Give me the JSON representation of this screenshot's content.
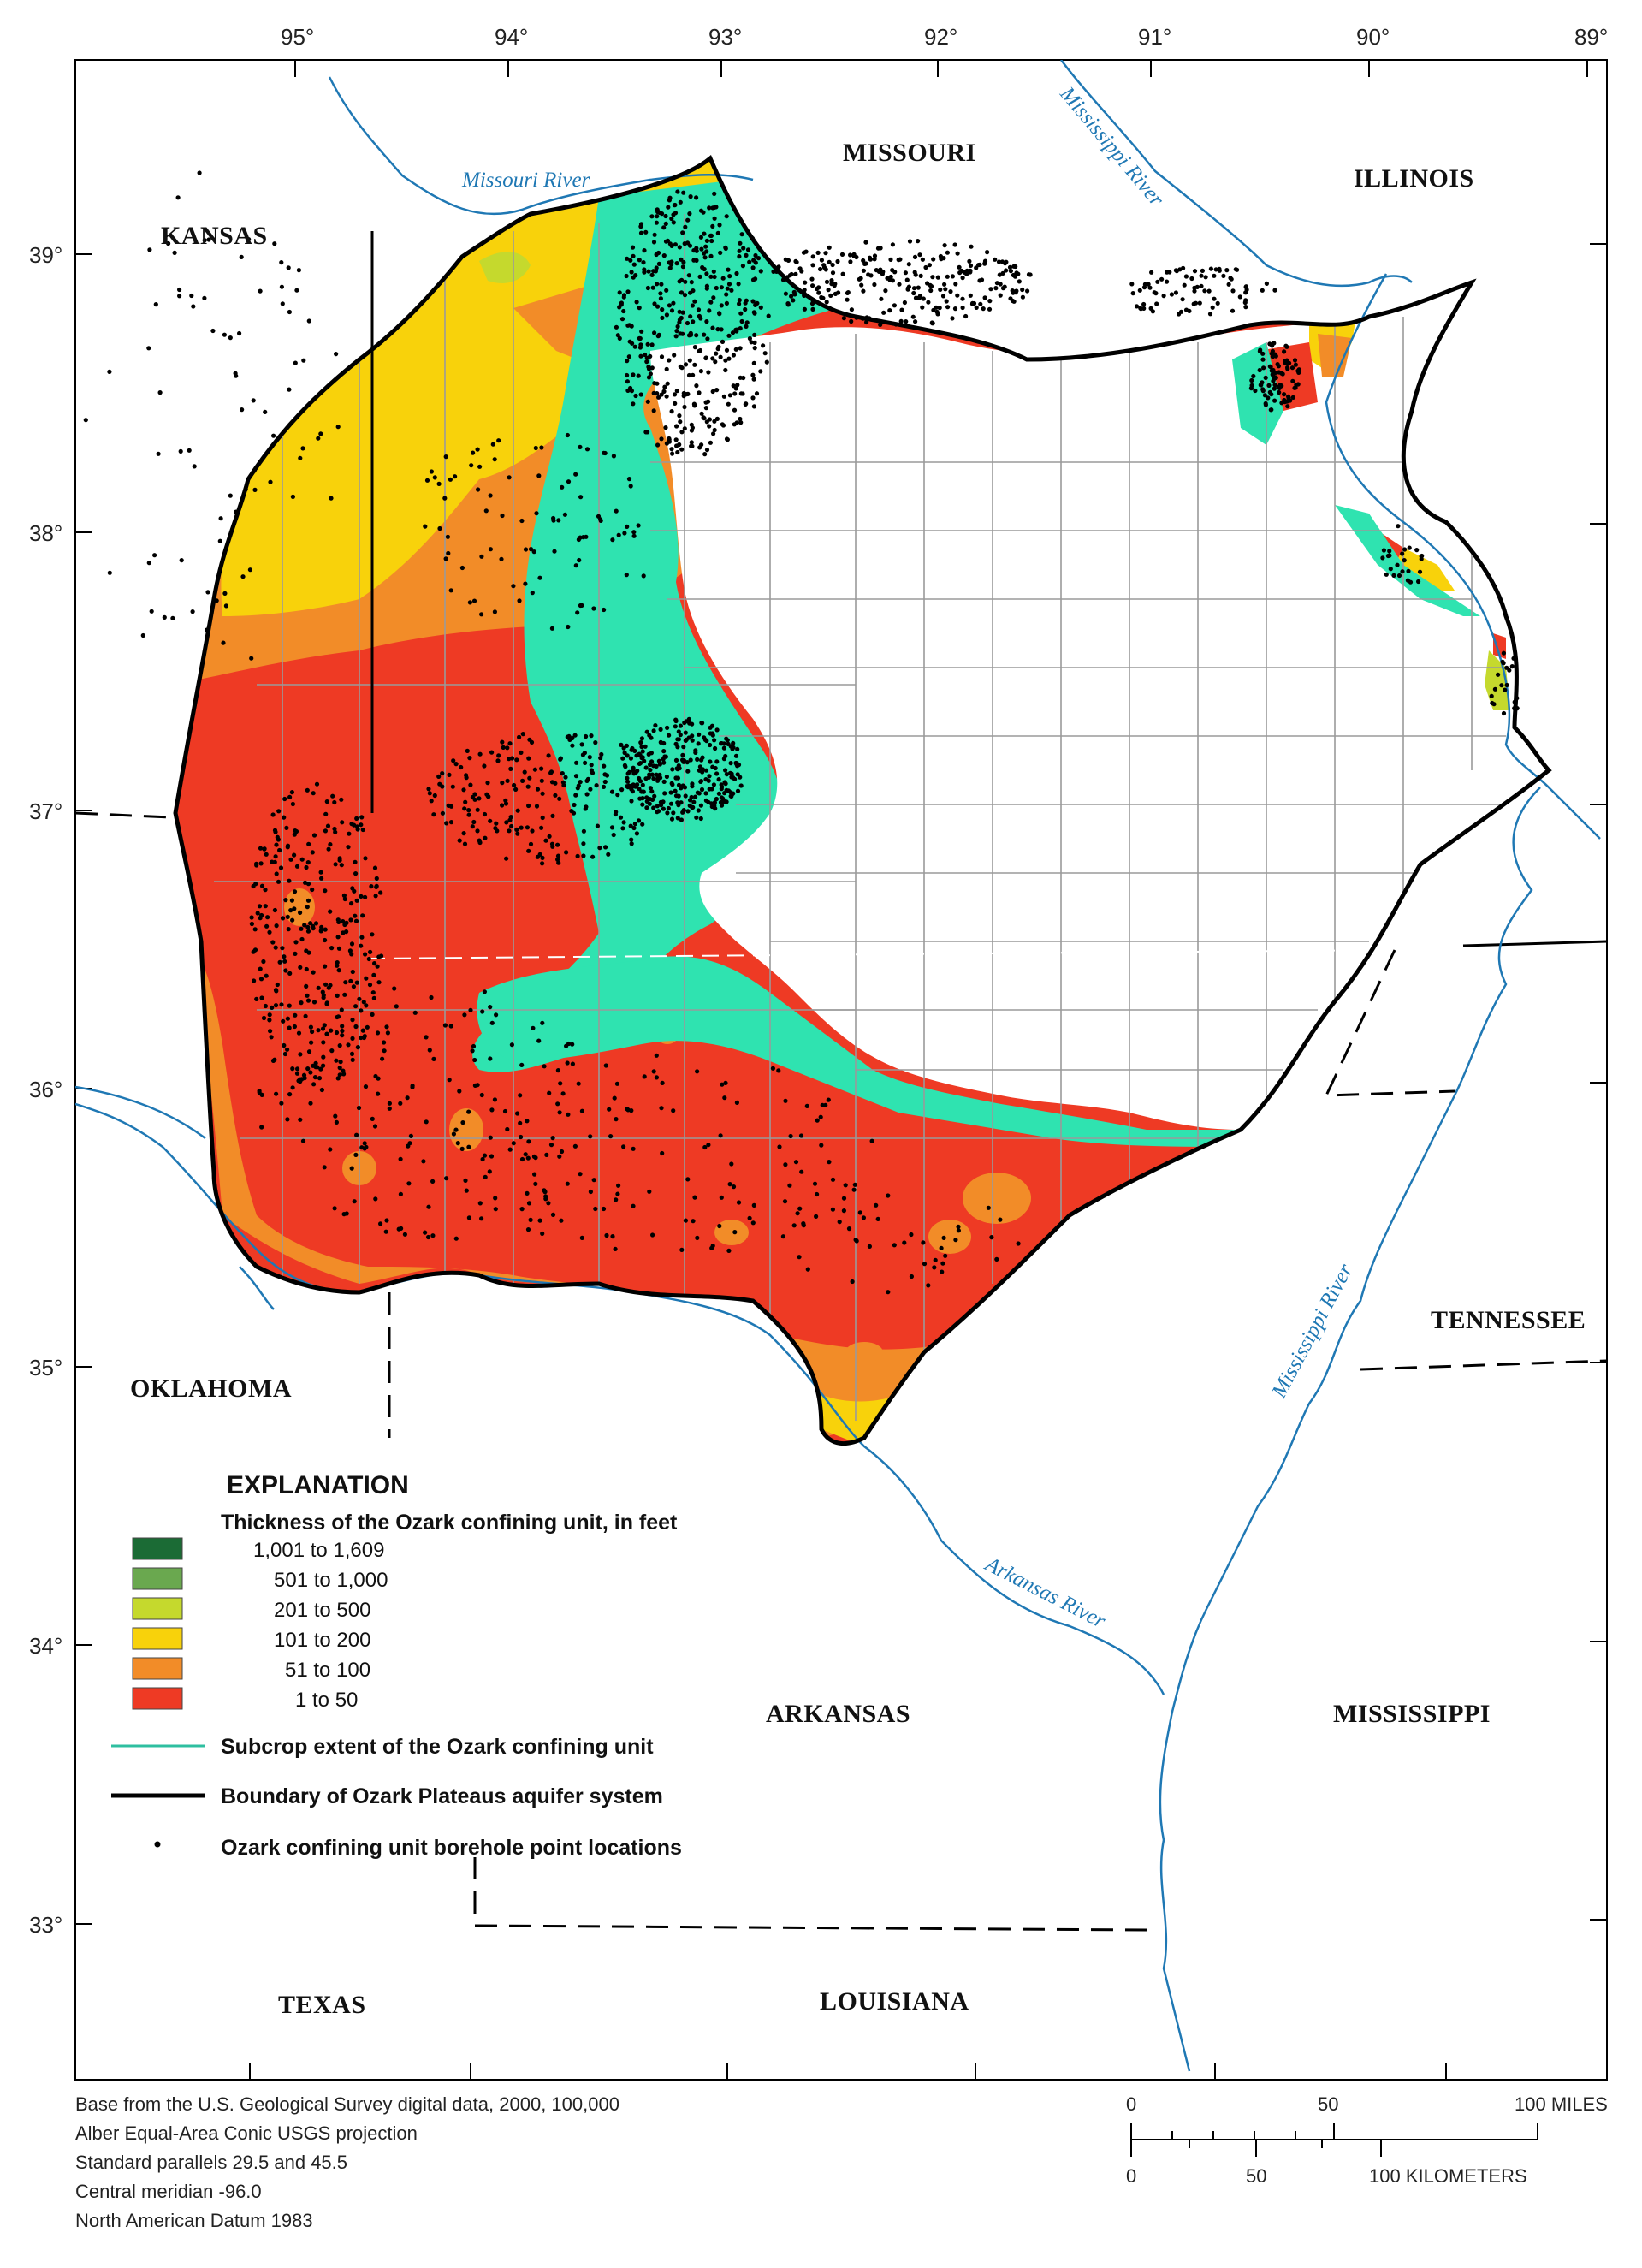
{
  "map": {
    "longitude_labels": [
      "95°",
      "94°",
      "93°",
      "92°",
      "91°",
      "90°",
      "89°"
    ],
    "latitude_labels": [
      "39°",
      "38°",
      "37°",
      "36°",
      "35°",
      "34°",
      "33°"
    ],
    "states": [
      "KANSAS",
      "MISSOURI",
      "ILLINOIS",
      "OKLAHOMA",
      "TENNESSEE",
      "ARKANSAS",
      "MISSISSIPPI",
      "TEXAS",
      "LOUISIANA"
    ],
    "rivers": {
      "missouri": "Missouri River",
      "mississippi_north": "Mississippi River",
      "mississippi_south": "Mississippi River",
      "arkansas": "Arkansas River"
    },
    "colors": {
      "c1001_1609": "#1b6b35",
      "c501_1000": "#6aa84f",
      "c201_500": "#c5d92d",
      "c101_200": "#f8d20b",
      "c51_100": "#f28c28",
      "c1_50": "#ee3a24",
      "subcrop": "#2fe3b0",
      "boundary": "#000000",
      "river": "#1f78b4"
    }
  },
  "legend": {
    "title": "EXPLANATION",
    "thickness_heading": "Thickness of the Ozark confining unit, in feet",
    "classes": [
      "1,001 to 1,609",
      "501 to 1,000",
      "201 to 500",
      "101 to 200",
      "51 to 100",
      "1 to 50"
    ],
    "subcrop": "Subcrop extent of the Ozark confining unit",
    "boundary": "Boundary of Ozark Plateaus aquifer system",
    "boreholes": "Ozark confining unit borehole point locations"
  },
  "credits": [
    "Base from the U.S. Geological Survey digital data, 2000, 100,000",
    "Alber Equal-Area Conic USGS projection",
    "Standard parallels 29.5 and 45.5",
    "Central meridian -96.0",
    "North American Datum 1983"
  ],
  "scale": {
    "miles": {
      "zero": "0",
      "mid": "50",
      "end": "100 MILES"
    },
    "km": {
      "zero": "0",
      "mid": "50",
      "end": "100 KILOMETERS"
    }
  }
}
